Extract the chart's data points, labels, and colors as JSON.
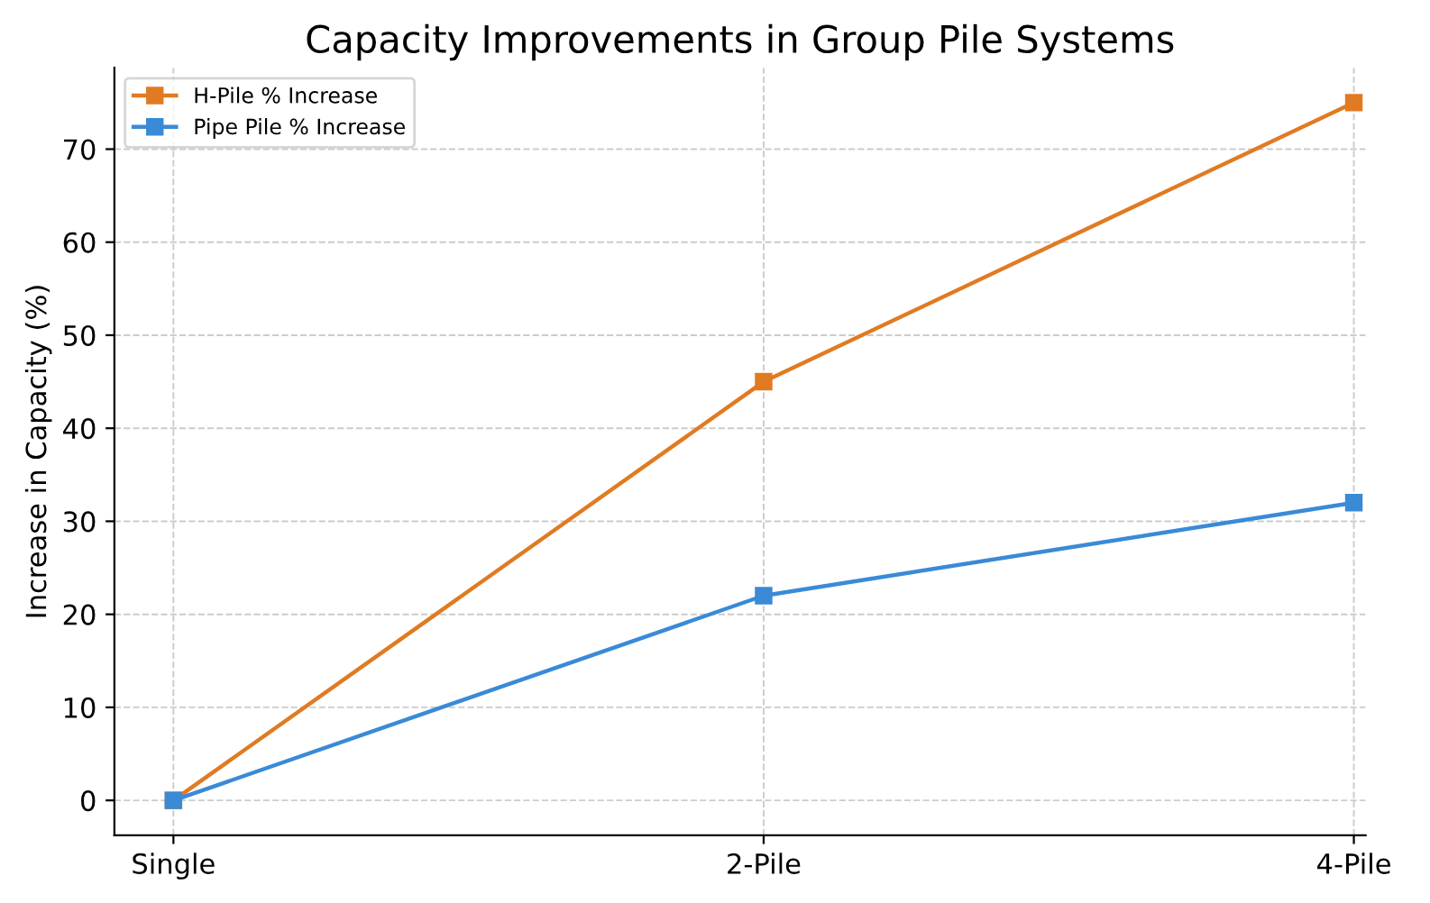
{
  "chart_data": {
    "type": "line",
    "title": "Capacity Improvements in Group Pile Systems",
    "ylabel": "Increase in Capacity (%)",
    "categories": [
      "Single",
      "2-Pile",
      "4-Pile"
    ],
    "series": [
      {
        "name": "H-Pile % Increase",
        "color": "#e07b22",
        "values": [
          0,
          45,
          75
        ]
      },
      {
        "name": "Pipe Pile % Increase",
        "color": "#3a8ad6",
        "values": [
          0,
          22,
          32
        ]
      }
    ],
    "ylim": [
      -3.75,
      78.75
    ],
    "yticks": [
      0,
      10,
      20,
      30,
      40,
      50,
      60,
      70
    ],
    "grid": true,
    "legend": "top left",
    "marker": "square",
    "line_style": "solid"
  }
}
